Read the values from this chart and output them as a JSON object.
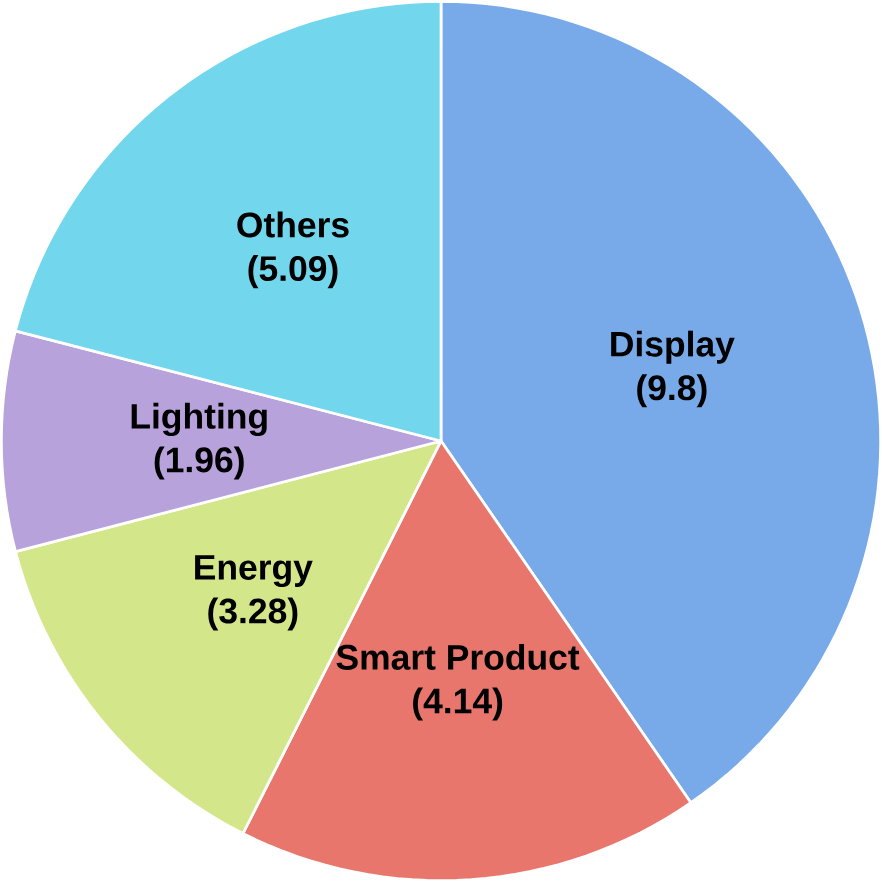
{
  "chart_data": {
    "type": "pie",
    "categories": [
      "Display",
      "Smart Product",
      "Energy",
      "Lighting",
      "Others"
    ],
    "values": [
      9.8,
      4.14,
      3.28,
      1.96,
      5.09
    ],
    "value_labels": [
      "(9.8)",
      "(4.14)",
      "(3.28)",
      "(1.96)",
      "(5.09)"
    ],
    "colors": [
      "#78aaea",
      "#e8766c",
      "#d3e68a",
      "#b7a2dc",
      "#72d6ec"
    ]
  }
}
